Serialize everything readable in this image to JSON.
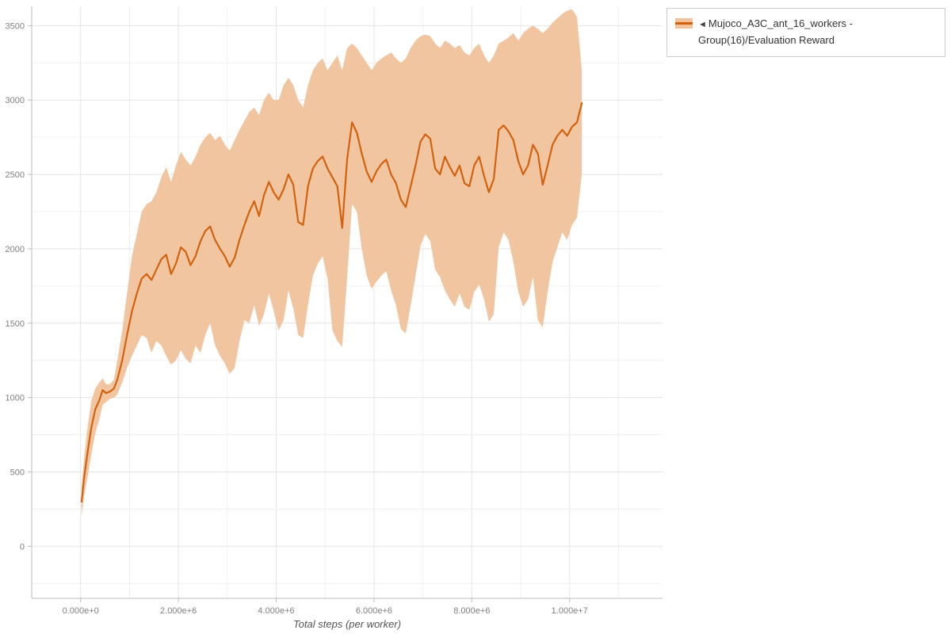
{
  "legend": {
    "marker": "◄",
    "label": "Mujoco_A3C_ant_16_workers - Group(16)/Evaluation Reward"
  },
  "chart_data": {
    "type": "line",
    "title": "",
    "xlabel": "Total steps (per worker)",
    "ylabel": "",
    "legend_position": "top-right-outside",
    "grid": true,
    "x_multiplier": 1000000,
    "xlim": [
      -1000000,
      11900000
    ],
    "ylim": [
      -350,
      3630
    ],
    "x_ticks": [
      0,
      2,
      4,
      6,
      8,
      10
    ],
    "x_tick_labels": [
      "0.000e+0",
      "2.000e+6",
      "4.000e+6",
      "6.000e+6",
      "8.000e+6",
      "1.000e+7"
    ],
    "y_ticks": [
      0,
      500,
      1000,
      1500,
      2000,
      2500,
      3000,
      3500
    ],
    "y_tick_labels": [
      "0",
      "500",
      "1000",
      "1500",
      "2000",
      "2500",
      "3000",
      "3500"
    ],
    "x_minor_step": 1,
    "y_minor_step": 250,
    "colors": {
      "line": "#d2620e",
      "band": "#f1c29c",
      "grid_major": "#e4e4e4",
      "grid_minor": "#f0f0f0",
      "axis": "#bcbcbc",
      "tick_text": "#808080"
    },
    "series_name": "Mujoco_A3C_ant_16_workers - Group(16)/Evaluation Reward",
    "points": {
      "x": [
        0.02,
        0.08,
        0.15,
        0.22,
        0.3,
        0.38,
        0.45,
        0.52,
        0.6,
        0.68,
        0.75,
        0.85,
        0.95,
        1.05,
        1.15,
        1.25,
        1.35,
        1.45,
        1.55,
        1.65,
        1.75,
        1.85,
        1.95,
        2.05,
        2.15,
        2.25,
        2.35,
        2.45,
        2.55,
        2.65,
        2.75,
        2.85,
        2.95,
        3.05,
        3.15,
        3.25,
        3.35,
        3.45,
        3.55,
        3.65,
        3.75,
        3.85,
        3.95,
        4.05,
        4.15,
        4.25,
        4.35,
        4.45,
        4.55,
        4.65,
        4.75,
        4.85,
        4.95,
        5.05,
        5.15,
        5.25,
        5.35,
        5.45,
        5.55,
        5.65,
        5.75,
        5.85,
        5.95,
        6.05,
        6.15,
        6.25,
        6.35,
        6.45,
        6.55,
        6.65,
        6.75,
        6.85,
        6.95,
        7.05,
        7.15,
        7.25,
        7.35,
        7.45,
        7.55,
        7.65,
        7.75,
        7.85,
        7.95,
        8.05,
        8.15,
        8.25,
        8.35,
        8.45,
        8.55,
        8.65,
        8.75,
        8.85,
        8.95,
        9.05,
        9.15,
        9.25,
        9.35,
        9.45,
        9.55,
        9.65,
        9.75,
        9.85,
        9.95,
        10.05,
        10.15,
        10.25
      ],
      "mean": [
        300,
        480,
        650,
        800,
        920,
        980,
        1050,
        1030,
        1040,
        1060,
        1120,
        1250,
        1420,
        1580,
        1700,
        1800,
        1830,
        1790,
        1860,
        1930,
        1960,
        1830,
        1900,
        2010,
        1980,
        1890,
        1950,
        2050,
        2120,
        2150,
        2060,
        2000,
        1950,
        1880,
        1940,
        2060,
        2160,
        2250,
        2320,
        2220,
        2360,
        2450,
        2380,
        2330,
        2400,
        2500,
        2430,
        2180,
        2160,
        2420,
        2540,
        2590,
        2620,
        2540,
        2480,
        2420,
        2140,
        2600,
        2850,
        2780,
        2640,
        2520,
        2450,
        2520,
        2570,
        2600,
        2500,
        2440,
        2330,
        2280,
        2420,
        2560,
        2720,
        2770,
        2740,
        2540,
        2500,
        2620,
        2550,
        2490,
        2560,
        2440,
        2420,
        2560,
        2620,
        2490,
        2380,
        2470,
        2800,
        2830,
        2790,
        2730,
        2590,
        2500,
        2560,
        2700,
        2640,
        2430,
        2560,
        2700,
        2760,
        2800,
        2760,
        2820,
        2850,
        2980
      ],
      "lower": [
        200,
        350,
        480,
        620,
        760,
        850,
        950,
        970,
        990,
        1000,
        1020,
        1100,
        1200,
        1280,
        1350,
        1420,
        1400,
        1300,
        1380,
        1350,
        1280,
        1220,
        1250,
        1320,
        1260,
        1230,
        1350,
        1300,
        1420,
        1500,
        1350,
        1280,
        1230,
        1160,
        1200,
        1380,
        1520,
        1500,
        1620,
        1480,
        1560,
        1700,
        1580,
        1450,
        1520,
        1720,
        1600,
        1420,
        1400,
        1620,
        1820,
        1900,
        1950,
        1800,
        1450,
        1380,
        1340,
        1800,
        2300,
        2250,
        2000,
        1820,
        1730,
        1780,
        1820,
        1850,
        1720,
        1620,
        1460,
        1430,
        1620,
        1820,
        2020,
        2100,
        2050,
        1860,
        1810,
        1720,
        1660,
        1610,
        1700,
        1610,
        1590,
        1710,
        1760,
        1660,
        1510,
        1560,
        2010,
        2110,
        2060,
        1910,
        1710,
        1610,
        1660,
        1810,
        1520,
        1470,
        1710,
        1910,
        2010,
        2110,
        2060,
        2160,
        2210,
        2500
      ],
      "upper": [
        400,
        620,
        820,
        980,
        1060,
        1100,
        1130,
        1090,
        1090,
        1120,
        1250,
        1450,
        1700,
        1950,
        2100,
        2250,
        2300,
        2320,
        2380,
        2480,
        2550,
        2450,
        2560,
        2650,
        2600,
        2560,
        2620,
        2700,
        2750,
        2780,
        2730,
        2760,
        2700,
        2660,
        2730,
        2800,
        2860,
        2920,
        2950,
        2900,
        3000,
        3050,
        3000,
        3000,
        3100,
        3150,
        3100,
        3000,
        2950,
        3100,
        3200,
        3250,
        3280,
        3200,
        3250,
        3300,
        3200,
        3350,
        3380,
        3350,
        3300,
        3250,
        3200,
        3250,
        3280,
        3300,
        3320,
        3280,
        3250,
        3280,
        3350,
        3400,
        3430,
        3440,
        3430,
        3380,
        3350,
        3400,
        3380,
        3350,
        3370,
        3320,
        3300,
        3350,
        3380,
        3300,
        3250,
        3300,
        3380,
        3400,
        3420,
        3450,
        3400,
        3450,
        3480,
        3500,
        3480,
        3450,
        3480,
        3520,
        3550,
        3580,
        3600,
        3610,
        3560,
        3200
      ]
    }
  }
}
